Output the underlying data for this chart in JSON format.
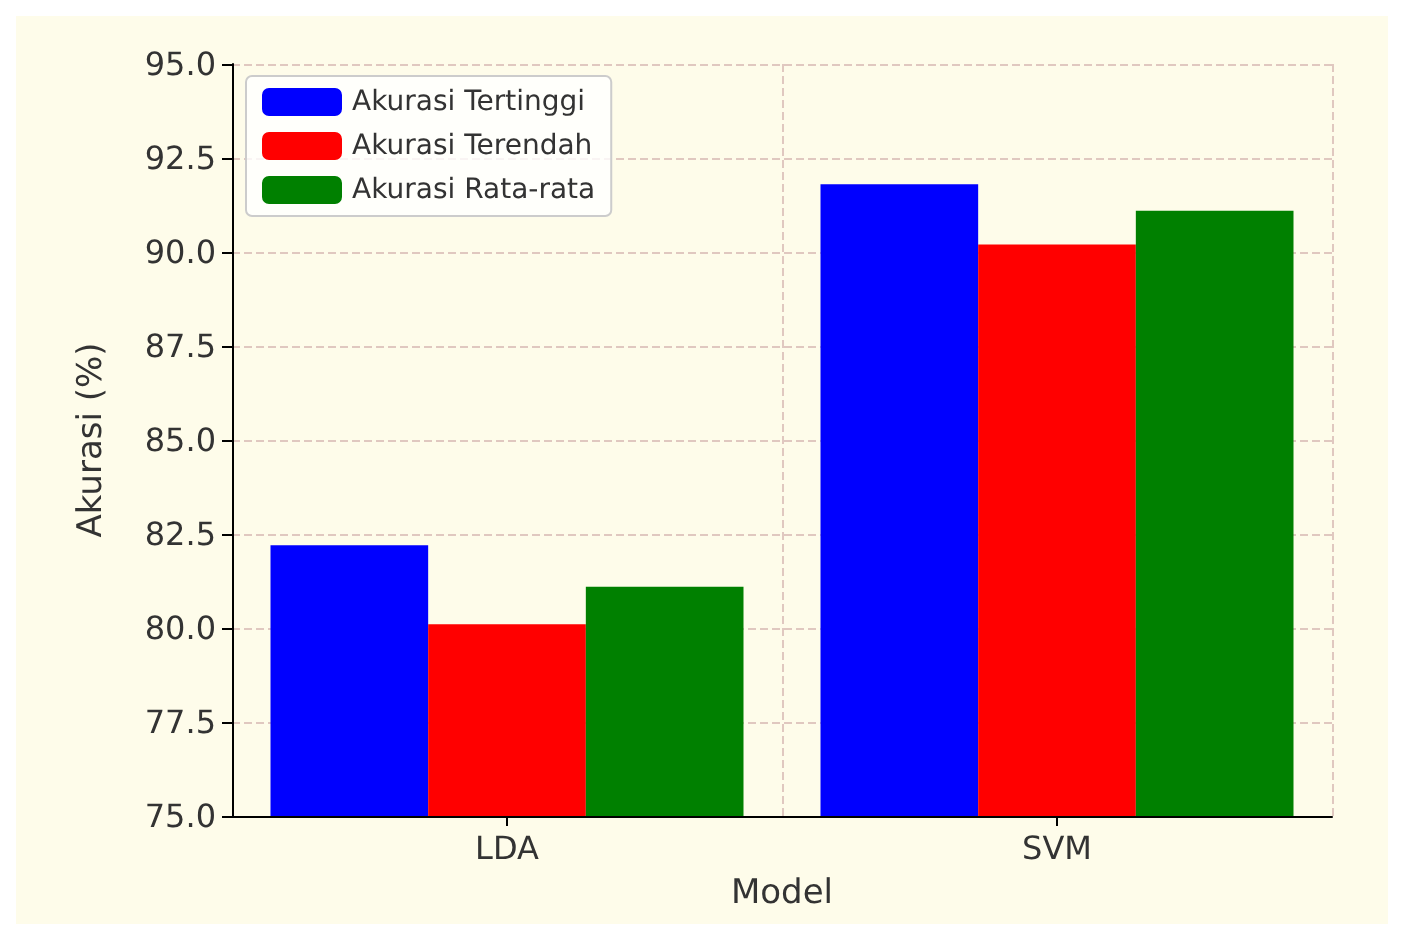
{
  "chart_data": {
    "type": "bar",
    "xlabel": "Model",
    "ylabel": "Akurasi (%)",
    "categories": [
      "LDA",
      "SVM"
    ],
    "series": [
      {
        "name": "Akurasi Tertinggi",
        "color": "#0000ff",
        "values": [
          82.2,
          91.8
        ]
      },
      {
        "name": "Akurasi Terendah",
        "color": "#ff0000",
        "values": [
          80.1,
          90.2
        ]
      },
      {
        "name": "Akurasi Rata-rata",
        "color": "#008000",
        "values": [
          81.1,
          91.1
        ]
      }
    ],
    "ylim": [
      75,
      95
    ],
    "yticks": [
      {
        "value": 75,
        "label": "75.0"
      },
      77.5,
      {
        "value": 80,
        "label": "80.0"
      },
      82.5,
      {
        "value": 85,
        "label": "85.0"
      },
      87.5,
      {
        "value": 90,
        "label": "90.0"
      },
      92.5,
      {
        "value": 95,
        "label": "95.0"
      }
    ],
    "grid": true,
    "legend": "top left"
  }
}
